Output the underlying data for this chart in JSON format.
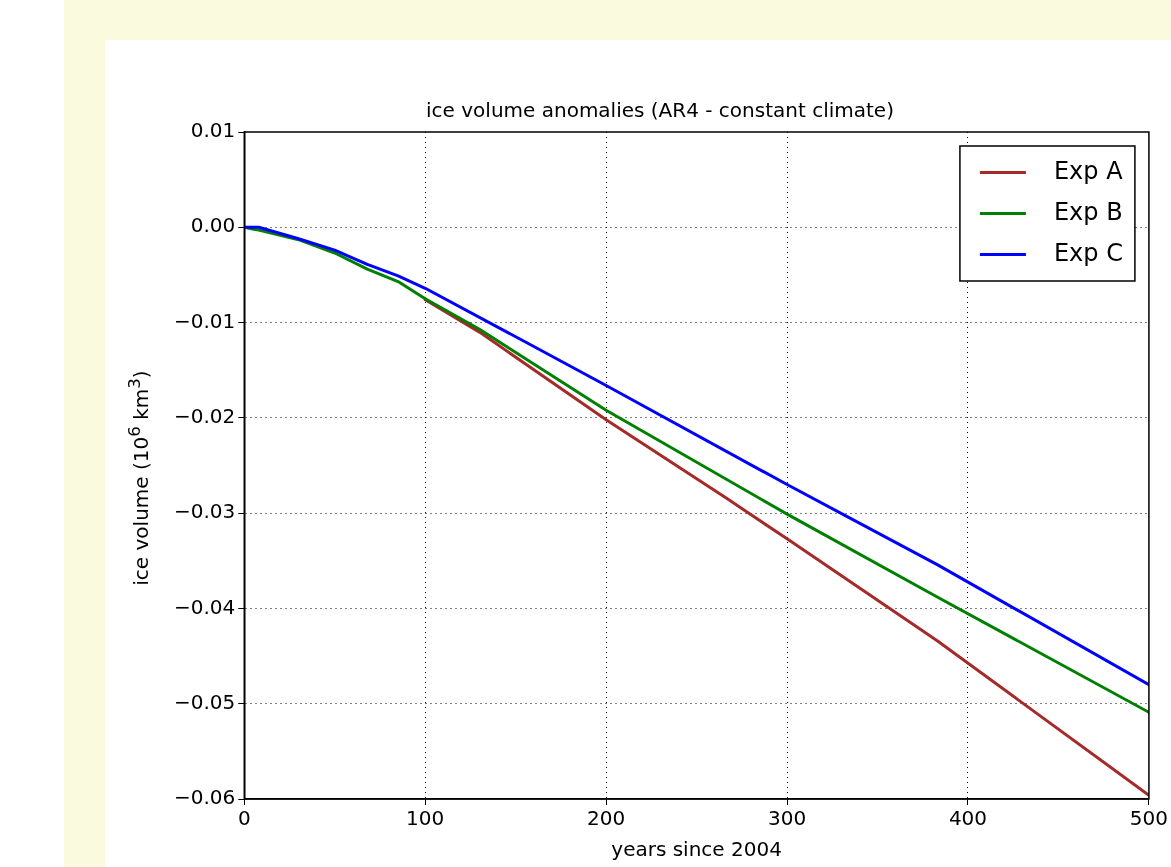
{
  "chart_data": {
    "type": "line",
    "title": "ice volume anomalies (AR4 - constant climate)",
    "xlabel": "years since 2004",
    "ylabel": "ice volume (10$^{6}$ km$^{3}$)",
    "xlim": [
      0,
      500
    ],
    "xticks": [
      0,
      100,
      200,
      300,
      400,
      500
    ],
    "ylim": [
      -0.06,
      0.01
    ],
    "yticks": [
      {
        "value": -0.06,
        "label": "−0.06"
      },
      {
        "value": -0.05,
        "label": "−0.05"
      },
      {
        "value": -0.04,
        "label": "−0.04"
      },
      {
        "value": -0.03,
        "label": "−0.03"
      },
      {
        "value": -0.02,
        "label": "−0.02"
      },
      {
        "value": -0.01,
        "label": "−0.01"
      },
      {
        "value": 0,
        "label": "0.00"
      },
      {
        "value": 0.01,
        "label": "0.01"
      }
    ],
    "grid": true,
    "legend": "top right",
    "line_style": "solid",
    "marker": "none",
    "series": [
      {
        "name": "Exp A",
        "color": "#a52a2a",
        "x": [
          100,
          130,
          200,
          267,
          300,
          383,
          500
        ],
        "values": [
          -0.0076,
          -0.011,
          -0.0202,
          -0.0285,
          -0.0327,
          -0.0434,
          -0.0596
        ]
      },
      {
        "name": "Exp B",
        "color": "#008000",
        "x": [
          0,
          8,
          30,
          50,
          68,
          85,
          100,
          130,
          200,
          300,
          383,
          500
        ],
        "values": [
          0,
          -0.0003,
          -0.0013,
          -0.0027,
          -0.0044,
          -0.0057,
          -0.0075,
          -0.0107,
          -0.0192,
          -0.0301,
          -0.0388,
          -0.0509
        ]
      },
      {
        "name": "Exp C",
        "color": "#0000ff",
        "x": [
          0,
          8,
          30,
          50,
          68,
          85,
          100,
          158,
          200,
          300,
          383,
          500
        ],
        "values": [
          0,
          0,
          -0.0012,
          -0.0024,
          -0.0039,
          -0.0051,
          -0.0064,
          -0.0123,
          -0.0166,
          -0.027,
          -0.0354,
          -0.048
        ]
      }
    ]
  }
}
